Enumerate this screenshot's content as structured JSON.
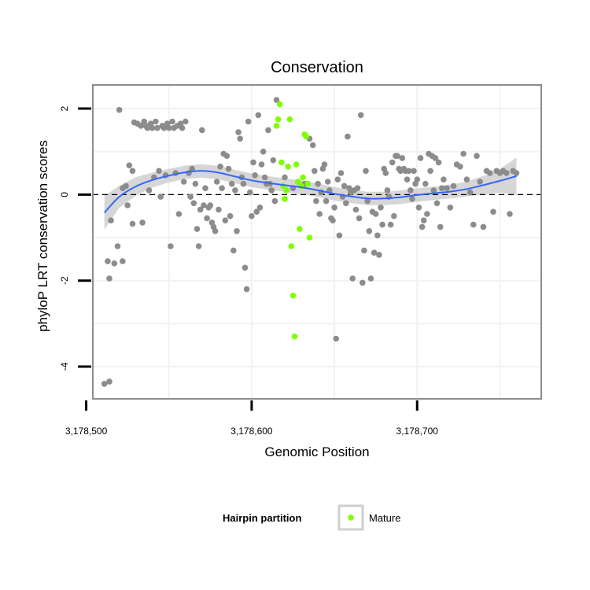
{
  "chart_data": {
    "type": "scatter",
    "title": "Conservation",
    "xlabel": "Genomic Position",
    "ylabel": "phyloP LRT conservation scores",
    "xlim": [
      3178504,
      3178775
    ],
    "ylim": [
      -4.75,
      2.55
    ],
    "x_ticks": [
      3178500,
      3178600,
      3178700
    ],
    "x_tick_labels": [
      "3,178,500",
      "3,178,600",
      "3,178,700"
    ],
    "y_ticks": [
      -4,
      -2,
      0,
      2
    ],
    "y_tick_labels": [
      "-4",
      "-2",
      "0",
      "2"
    ],
    "grid": true,
    "reference_line": {
      "y": 0,
      "style": "dashed",
      "color": "#000000"
    },
    "legend": {
      "title": "Hairpin partition",
      "placement": "bottom",
      "entries": [
        "Mature"
      ]
    },
    "colors": {
      "other": "#8c8c8c",
      "mature": "#7fff00",
      "smooth": "#3366ff",
      "ribbon": "#cfcfcf",
      "panel_border": "#8c8c8c",
      "grid": "#f2f2f2"
    },
    "series": [
      {
        "key": "other",
        "points": [
          [
            3178511,
            -4.4
          ],
          [
            3178514,
            -4.35
          ],
          [
            3178513,
            -1.55
          ],
          [
            3178514,
            -1.95
          ],
          [
            3178515,
            -0.6
          ],
          [
            3178517,
            -1.6
          ],
          [
            3178519,
            -1.2
          ],
          [
            3178520,
            1.97
          ],
          [
            3178522,
            -1.55
          ],
          [
            3178522,
            0.15
          ],
          [
            3178524,
            0.2
          ],
          [
            3178525,
            -0.25
          ],
          [
            3178526,
            0.68
          ],
          [
            3178528,
            0.55
          ],
          [
            3178528,
            -0.68
          ],
          [
            3178529,
            1.68
          ],
          [
            3178531,
            1.65
          ],
          [
            3178533,
            1.6
          ],
          [
            3178534,
            -0.65
          ],
          [
            3178535,
            1.7
          ],
          [
            3178536,
            1.6
          ],
          [
            3178537,
            1.55
          ],
          [
            3178538,
            0.1
          ],
          [
            3178539,
            1.65
          ],
          [
            3178540,
            1.55
          ],
          [
            3178541,
            0.4
          ],
          [
            3178542,
            1.7
          ],
          [
            3178543,
            1.55
          ],
          [
            3178544,
            0.55
          ],
          [
            3178545,
            -0.05
          ],
          [
            3178546,
            1.6
          ],
          [
            3178547,
            1.55
          ],
          [
            3178548,
            0.45
          ],
          [
            3178549,
            1.65
          ],
          [
            3178550,
            1.55
          ],
          [
            3178551,
            -1.2
          ],
          [
            3178552,
            1.7
          ],
          [
            3178553,
            1.55
          ],
          [
            3178554,
            0.5
          ],
          [
            3178555,
            1.6
          ],
          [
            3178556,
            -0.45
          ],
          [
            3178557,
            1.65
          ],
          [
            3178558,
            1.55
          ],
          [
            3178559,
            0.3
          ],
          [
            3178560,
            1.7
          ],
          [
            3178562,
            0.5
          ],
          [
            3178563,
            -0.05
          ],
          [
            3178564,
            0.6
          ],
          [
            3178565,
            -0.2
          ],
          [
            3178566,
            0.25
          ],
          [
            3178567,
            -0.8
          ],
          [
            3178568,
            -1.2
          ],
          [
            3178569,
            -0.35
          ],
          [
            3178570,
            1.5
          ],
          [
            3178571,
            -0.25
          ],
          [
            3178572,
            0.15
          ],
          [
            3178573,
            -0.55
          ],
          [
            3178574,
            -0.3
          ],
          [
            3178575,
            -0.25
          ],
          [
            3178576,
            -0.65
          ],
          [
            3178577,
            -0.75
          ],
          [
            3178578,
            -0.85
          ],
          [
            3178579,
            0.3
          ],
          [
            3178580,
            -0.35
          ],
          [
            3178581,
            0.65
          ],
          [
            3178582,
            0.15
          ],
          [
            3178583,
            0.95
          ],
          [
            3178584,
            -0.6
          ],
          [
            3178585,
            0.9
          ],
          [
            3178586,
            0.6
          ],
          [
            3178587,
            -0.5
          ],
          [
            3178588,
            0.25
          ],
          [
            3178589,
            -1.3
          ],
          [
            3178590,
            0.1
          ],
          [
            3178591,
            -0.85
          ],
          [
            3178592,
            1.45
          ],
          [
            3178593,
            1.3
          ],
          [
            3178594,
            0.4
          ],
          [
            3178595,
            0.25
          ],
          [
            3178596,
            -1.7
          ],
          [
            3178597,
            -2.2
          ],
          [
            3178598,
            1.7
          ],
          [
            3178599,
            0.05
          ],
          [
            3178600,
            -0.5
          ],
          [
            3178601,
            0.75
          ],
          [
            3178602,
            0.45
          ],
          [
            3178603,
            -0.4
          ],
          [
            3178604,
            1.85
          ],
          [
            3178605,
            -0.3
          ],
          [
            3178606,
            0.7
          ],
          [
            3178607,
            1.0
          ],
          [
            3178608,
            0.4
          ],
          [
            3178609,
            0.25
          ],
          [
            3178610,
            1.5
          ],
          [
            3178611,
            0.25
          ],
          [
            3178612,
            0.1
          ],
          [
            3178613,
            0.8
          ],
          [
            3178614,
            -0.15
          ],
          [
            3178615,
            2.2
          ],
          [
            3178620,
            0.4
          ],
          [
            3178625,
            0.15
          ],
          [
            3178628,
            0.3
          ],
          [
            3178632,
            0.25
          ],
          [
            3178635,
            1.3
          ],
          [
            3178637,
            1.15
          ],
          [
            3178638,
            0.55
          ],
          [
            3178639,
            -0.15
          ],
          [
            3178640,
            0.25
          ],
          [
            3178641,
            -0.45
          ],
          [
            3178642,
            0.05
          ],
          [
            3178643,
            0.6
          ],
          [
            3178644,
            0.7
          ],
          [
            3178645,
            -0.15
          ],
          [
            3178646,
            0.3
          ],
          [
            3178647,
            0.1
          ],
          [
            3178648,
            -0.55
          ],
          [
            3178649,
            -0.6
          ],
          [
            3178650,
            -0.3
          ],
          [
            3178651,
            -3.35
          ],
          [
            3178652,
            0.35
          ],
          [
            3178653,
            -0.95
          ],
          [
            3178654,
            0.5
          ],
          [
            3178655,
            -0.05
          ],
          [
            3178656,
            0.2
          ],
          [
            3178657,
            -0.2
          ],
          [
            3178658,
            1.35
          ],
          [
            3178659,
            0.15
          ],
          [
            3178660,
            0.05
          ],
          [
            3178661,
            -1.95
          ],
          [
            3178662,
            0.1
          ],
          [
            3178663,
            -0.35
          ],
          [
            3178664,
            0.15
          ],
          [
            3178665,
            -0.55
          ],
          [
            3178666,
            1.85
          ],
          [
            3178667,
            -2.05
          ],
          [
            3178668,
            -1.3
          ],
          [
            3178669,
            0.55
          ],
          [
            3178670,
            -0.15
          ],
          [
            3178671,
            -0.85
          ],
          [
            3178672,
            -1.95
          ],
          [
            3178673,
            -0.4
          ],
          [
            3178674,
            -1.35
          ],
          [
            3178675,
            -0.45
          ],
          [
            3178676,
            -0.95
          ],
          [
            3178677,
            -1.4
          ],
          [
            3178678,
            -0.3
          ],
          [
            3178679,
            -0.7
          ],
          [
            3178680,
            0.6
          ],
          [
            3178681,
            0.5
          ],
          [
            3178682,
            0.1
          ],
          [
            3178683,
            -0.05
          ],
          [
            3178684,
            -0.7
          ],
          [
            3178685,
            0.75
          ],
          [
            3178686,
            -0.5
          ],
          [
            3178687,
            0.9
          ],
          [
            3178688,
            0.9
          ],
          [
            3178689,
            0.6
          ],
          [
            3178690,
            0.55
          ],
          [
            3178691,
            0.85
          ],
          [
            3178692,
            0.6
          ],
          [
            3178693,
            0.55
          ],
          [
            3178694,
            0.35
          ],
          [
            3178695,
            0.55
          ],
          [
            3178696,
            0.1
          ],
          [
            3178697,
            -0.1
          ],
          [
            3178698,
            0.55
          ],
          [
            3178699,
            0.25
          ],
          [
            3178700,
            0.35
          ],
          [
            3178701,
            -0.3
          ],
          [
            3178702,
            0.85
          ],
          [
            3178703,
            -0.75
          ],
          [
            3178704,
            -0.6
          ],
          [
            3178705,
            0.25
          ],
          [
            3178706,
            -0.45
          ],
          [
            3178707,
            0.95
          ],
          [
            3178708,
            0.55
          ],
          [
            3178709,
            0.9
          ],
          [
            3178710,
            0.1
          ],
          [
            3178711,
            0.85
          ],
          [
            3178712,
            -0.2
          ],
          [
            3178713,
            0.75
          ],
          [
            3178714,
            -0.75
          ],
          [
            3178715,
            0.15
          ],
          [
            3178716,
            0.35
          ],
          [
            3178718,
            0.15
          ],
          [
            3178720,
            -0.3
          ],
          [
            3178722,
            0.2
          ],
          [
            3178724,
            0.7
          ],
          [
            3178726,
            0.65
          ],
          [
            3178728,
            0.95
          ],
          [
            3178730,
            0.35
          ],
          [
            3178732,
            0.05
          ],
          [
            3178734,
            -0.7
          ],
          [
            3178736,
            0.9
          ],
          [
            3178738,
            0.3
          ],
          [
            3178740,
            -0.75
          ],
          [
            3178742,
            0.55
          ],
          [
            3178744,
            0.5
          ],
          [
            3178746,
            -0.4
          ],
          [
            3178748,
            0.55
          ],
          [
            3178750,
            0.5
          ],
          [
            3178752,
            0.55
          ],
          [
            3178754,
            0.5
          ],
          [
            3178756,
            -0.45
          ],
          [
            3178758,
            0.55
          ],
          [
            3178760,
            0.5
          ]
        ]
      },
      {
        "key": "mature",
        "name": "Mature",
        "points": [
          [
            3178615,
            1.6
          ],
          [
            3178616,
            1.75
          ],
          [
            3178617,
            2.1
          ],
          [
            3178618,
            0.75
          ],
          [
            3178619,
            0.2
          ],
          [
            3178620,
            -0.1
          ],
          [
            3178621,
            0.1
          ],
          [
            3178622,
            0.65
          ],
          [
            3178623,
            1.75
          ],
          [
            3178624,
            -1.2
          ],
          [
            3178625,
            -2.35
          ],
          [
            3178626,
            -3.3
          ],
          [
            3178627,
            0.7
          ],
          [
            3178628,
            0.3
          ],
          [
            3178629,
            -0.8
          ],
          [
            3178630,
            0.2
          ],
          [
            3178631,
            0.4
          ],
          [
            3178632,
            1.4
          ],
          [
            3178633,
            1.35
          ],
          [
            3178634,
            0.25
          ],
          [
            3178635,
            -1.0
          ]
        ]
      }
    ],
    "smooth": {
      "x": [
        3178511,
        3178520,
        3178530,
        3178540,
        3178550,
        3178560,
        3178570,
        3178580,
        3178590,
        3178600,
        3178610,
        3178620,
        3178630,
        3178640,
        3178650,
        3178660,
        3178670,
        3178680,
        3178690,
        3178700,
        3178710,
        3178720,
        3178730,
        3178740,
        3178750,
        3178760
      ],
      "y": [
        -0.42,
        -0.05,
        0.19,
        0.34,
        0.44,
        0.52,
        0.55,
        0.51,
        0.42,
        0.33,
        0.27,
        0.22,
        0.17,
        0.1,
        0.02,
        -0.04,
        -0.09,
        -0.09,
        -0.06,
        -0.01,
        0.03,
        0.07,
        0.13,
        0.22,
        0.32,
        0.43
      ],
      "se": [
        0.2,
        0.13,
        0.11,
        0.09,
        0.08,
        0.08,
        0.08,
        0.08,
        0.08,
        0.08,
        0.08,
        0.08,
        0.08,
        0.08,
        0.08,
        0.08,
        0.08,
        0.08,
        0.08,
        0.08,
        0.08,
        0.08,
        0.09,
        0.11,
        0.14,
        0.22
      ]
    }
  }
}
